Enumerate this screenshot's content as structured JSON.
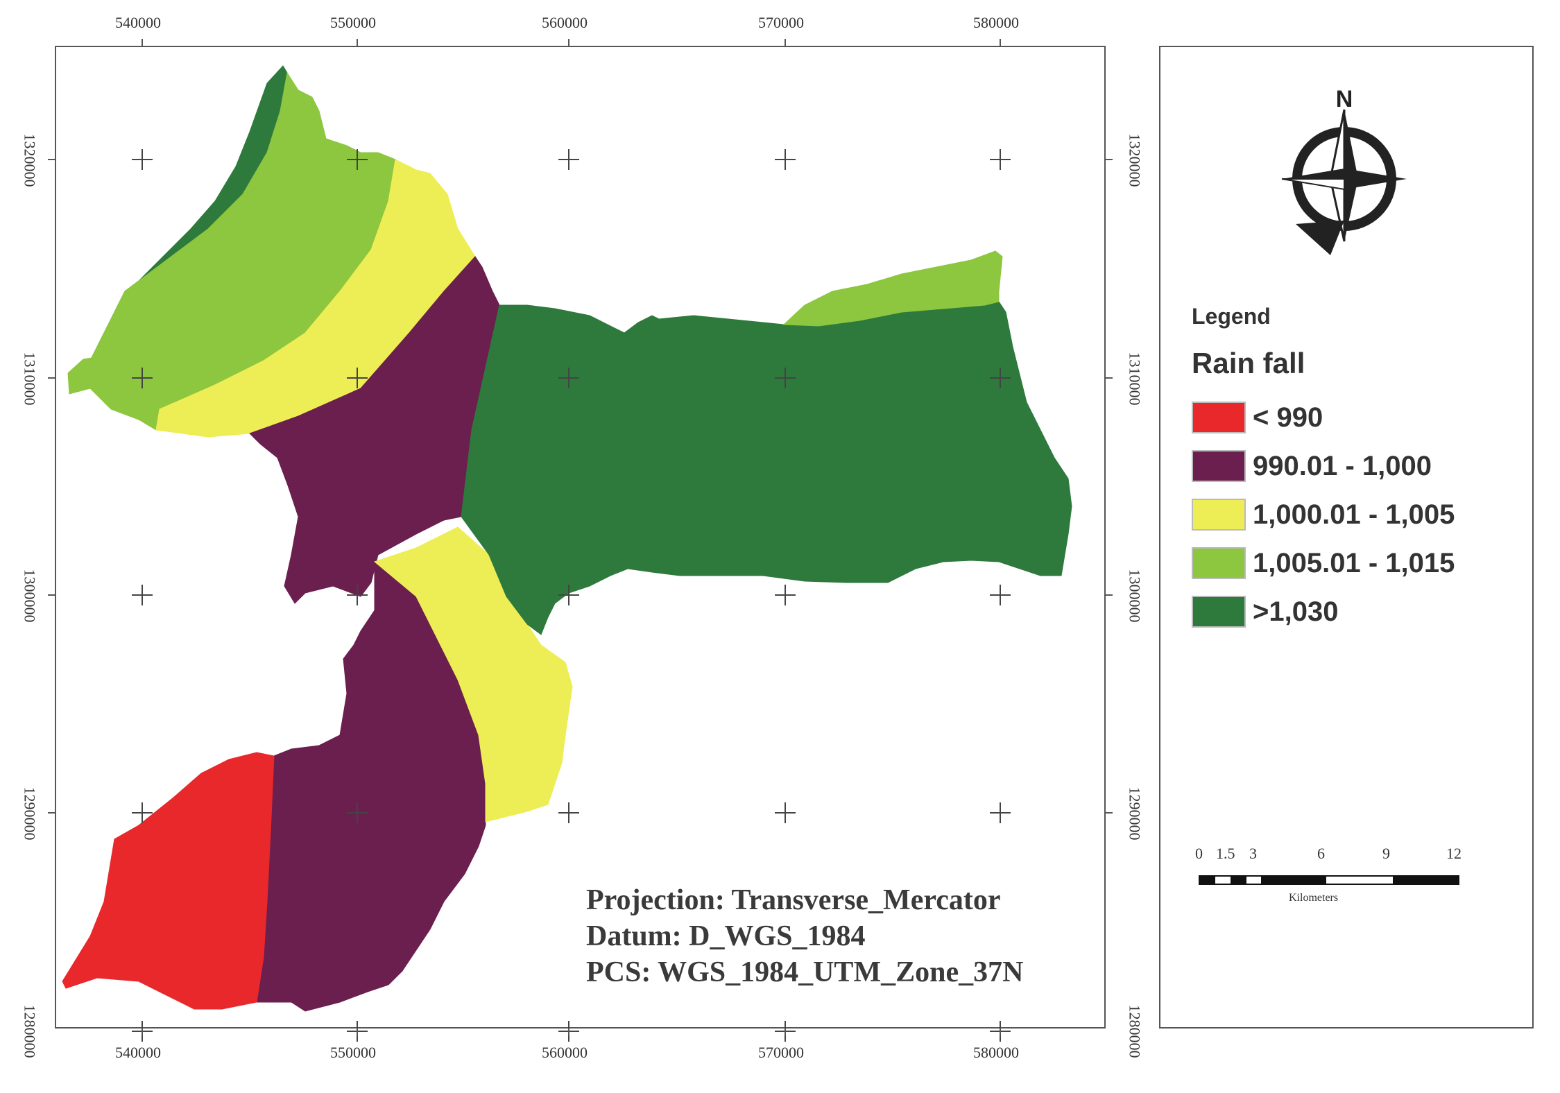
{
  "map": {
    "x_ticks": [
      "540000",
      "550000",
      "560000",
      "570000",
      "580000"
    ],
    "y_ticks": [
      "1320000",
      "1310000",
      "1300000",
      "1290000",
      "1280000"
    ],
    "projection_lines": [
      "Projection: Transverse_Mercator",
      "Datum: D_WGS_1984",
      "PCS: WGS_1984_UTM_Zone_37N"
    ]
  },
  "legend": {
    "heading": "Legend",
    "title": "Rain fall",
    "classes": [
      {
        "label": "< 990",
        "color": "#e8282b"
      },
      {
        "label": "990.01 - 1,000",
        "color": "#6b1f4e"
      },
      {
        "label": "1,000.01 - 1,005",
        "color": "#eded55"
      },
      {
        "label": "1,005.01 - 1,015",
        "color": "#8dc63f"
      },
      {
        "label": ">1,030",
        "color": "#2e7a3c"
      }
    ]
  },
  "scale_bar": {
    "labels": [
      "0",
      "1.5",
      "3",
      "6",
      "9",
      "12"
    ],
    "unit": "Kilometers"
  },
  "north_arrow": {
    "letter": "N",
    "icon": "north-arrow-icon"
  }
}
